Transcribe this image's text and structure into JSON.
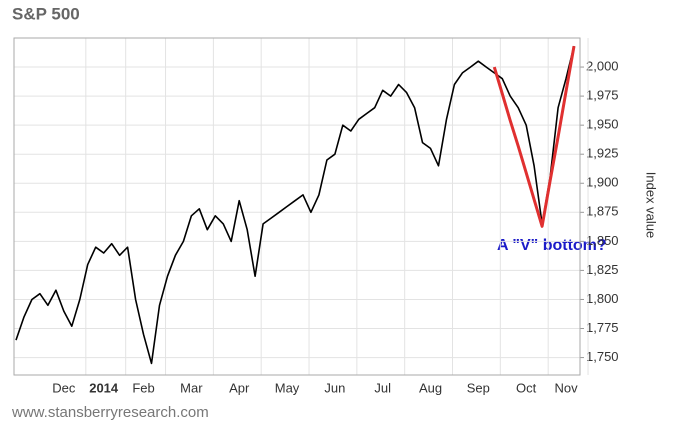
{
  "chart_data": {
    "type": "line",
    "title": "S&P 500",
    "y_label": "Index value",
    "annotation": "A \"V\" bottom?",
    "source": "www.stansberryresearch.com",
    "categories": [
      null,
      null,
      null,
      null,
      null,
      null,
      "Dec",
      null,
      null,
      null,
      null,
      "2014",
      null,
      null,
      null,
      null,
      "Feb",
      null,
      null,
      null,
      null,
      null,
      "Mar",
      null,
      null,
      null,
      null,
      null,
      "Apr",
      null,
      null,
      null,
      null,
      null,
      "May",
      null,
      null,
      null,
      null,
      null,
      "Jun",
      null,
      null,
      null,
      null,
      null,
      "Jul",
      null,
      null,
      null,
      null,
      null,
      "Aug",
      null,
      null,
      null,
      null,
      null,
      "Sep",
      null,
      null,
      null,
      null,
      null,
      "Oct",
      null,
      null,
      null,
      null,
      "Nov",
      null
    ],
    "series": [
      {
        "color": "#000000",
        "values": [
          1765,
          1785,
          1800,
          1805,
          1795,
          1808,
          1790,
          1777,
          1800,
          1830,
          1845,
          1840,
          1848,
          1838,
          1845,
          1800,
          1770,
          1745,
          1795,
          1820,
          1838,
          1850,
          1872,
          1878,
          1860,
          1872,
          1865,
          1850,
          1885,
          1860,
          1820,
          1865,
          1870,
          1875,
          1880,
          1885,
          1890,
          1875,
          1890,
          1920,
          1925,
          1950,
          1945,
          1955,
          1960,
          1965,
          1980,
          1975,
          1985,
          1978,
          1965,
          1935,
          1930,
          1915,
          1955,
          1985,
          1995,
          2000,
          2005,
          2000,
          1995,
          1990,
          1975,
          1965,
          1950,
          1915,
          1865,
          1905,
          1965,
          1990,
          2018
        ]
      },
      {
        "color": "#e03030",
        "values": [
          null,
          null,
          null,
          null,
          null,
          null,
          null,
          null,
          null,
          null,
          null,
          null,
          null,
          null,
          null,
          null,
          null,
          null,
          null,
          null,
          null,
          null,
          null,
          null,
          null,
          null,
          null,
          null,
          null,
          null,
          null,
          null,
          null,
          null,
          null,
          null,
          null,
          null,
          null,
          null,
          null,
          null,
          null,
          null,
          null,
          null,
          null,
          null,
          null,
          null,
          null,
          null,
          null,
          null,
          null,
          null,
          null,
          null,
          null,
          null,
          2000,
          1977,
          1954,
          1932,
          1909,
          1886,
          1863,
          1902,
          1940,
          1979,
          2018
        ]
      }
    ],
    "ylim": [
      1735,
      2025
    ],
    "yticks": [
      {
        "value": 1750,
        "label": "1,750"
      },
      {
        "value": 1775,
        "label": "1,775"
      },
      {
        "value": 1800,
        "label": "1,800"
      },
      {
        "value": 1825,
        "label": "1,825"
      },
      {
        "value": 1850,
        "label": "1,850"
      },
      {
        "value": 1875,
        "label": "1,875"
      },
      {
        "value": 1900,
        "label": "1,900"
      },
      {
        "value": 1925,
        "label": "1,925"
      },
      {
        "value": 1950,
        "label": "1,950"
      },
      {
        "value": 1975,
        "label": "1,975"
      },
      {
        "value": 2000,
        "label": "2,000"
      }
    ],
    "grid": true
  }
}
